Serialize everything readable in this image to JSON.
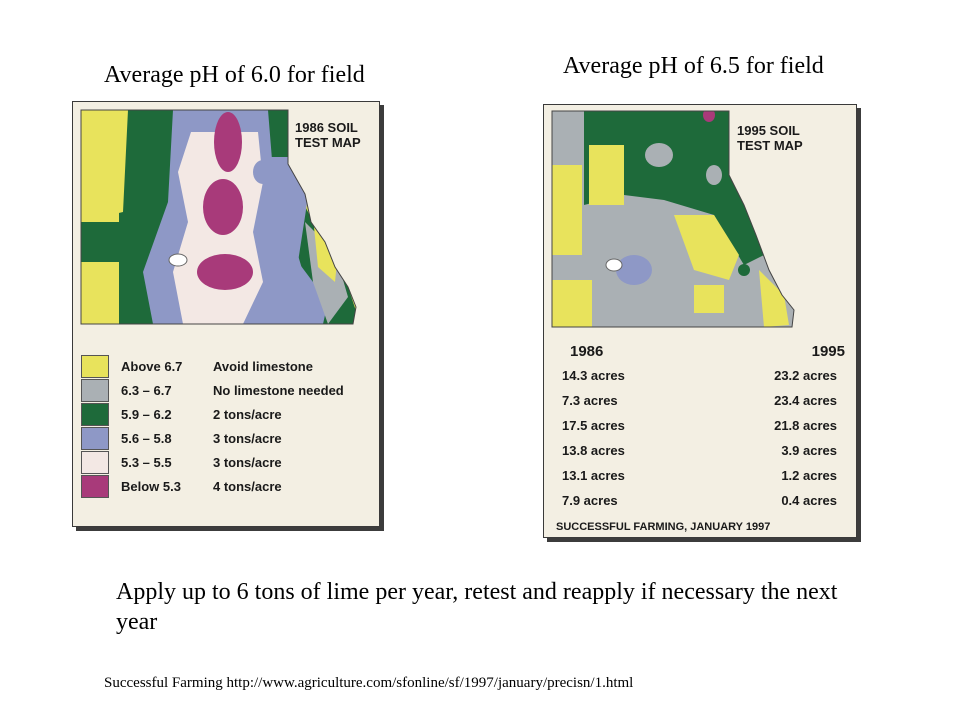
{
  "titles": {
    "left": "Average pH of 6.0 for field",
    "right": "Average pH of 6.5 for field"
  },
  "map_1986": {
    "label_line1": "1986 SOIL",
    "label_line2": "TEST MAP",
    "legend": [
      {
        "range": "Above 6.7",
        "recommendation": "Avoid limestone",
        "color": "#e8e35c"
      },
      {
        "range": "6.3 – 6.7",
        "recommendation": "No limestone needed",
        "color": "#aab0b4"
      },
      {
        "range": "5.9 – 6.2",
        "recommendation": "2 tons/acre",
        "color": "#1e6a3a"
      },
      {
        "range": "5.6 – 5.8",
        "recommendation": "3 tons/acre",
        "color": "#8e98c6"
      },
      {
        "range": "5.3 – 5.5",
        "recommendation": "3 tons/acre",
        "color": "#f3e8e4"
      },
      {
        "range": "Below 5.3",
        "recommendation": "4 tons/acre",
        "color": "#a83a7a"
      }
    ]
  },
  "map_1995": {
    "label_line1": "1995 SOIL",
    "label_line2": "TEST MAP",
    "acreage": {
      "year_1": "1986",
      "year_2": "1995",
      "rows": [
        {
          "a": "14.3 acres",
          "b": "23.2 acres"
        },
        {
          "a": "7.3 acres",
          "b": "23.4 acres"
        },
        {
          "a": "17.5 acres",
          "b": "21.8 acres"
        },
        {
          "a": "13.8 acres",
          "b": "3.9 acres"
        },
        {
          "a": "13.1 acres",
          "b": "1.2 acres"
        },
        {
          "a": "7.9 acres",
          "b": "0.4 acres"
        }
      ]
    },
    "credit": "SUCCESSFUL FARMING, JANUARY 1997"
  },
  "note": "Apply up to 6 tons of lime per year, retest and reapply if necessary the next year",
  "source": "Successful Farming http://www.agriculture.com/sfonline/sf/1997/january/precisn/1.html"
}
